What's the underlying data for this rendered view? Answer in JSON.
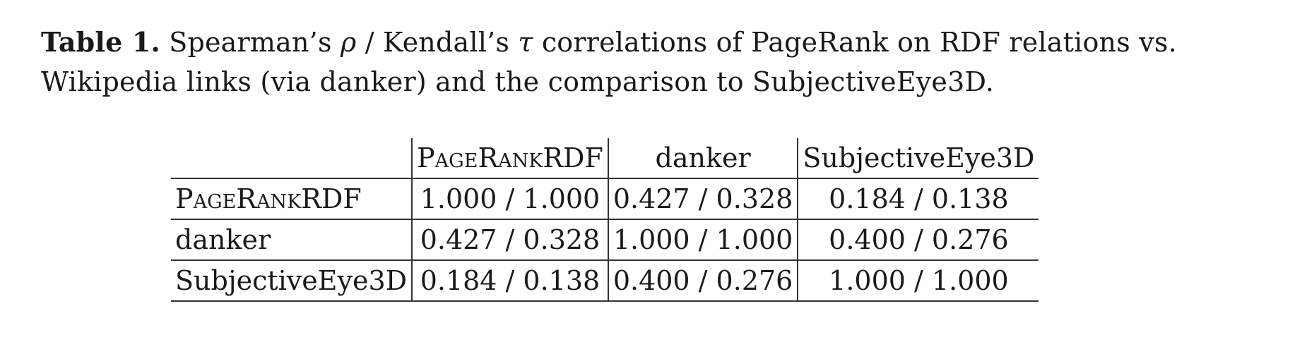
{
  "caption": {
    "label": "Table 1.",
    "text_before_rho": "Spearman’s ",
    "rho": "ρ",
    "text_middle": " / Kendall’s ",
    "tau": "τ",
    "text_after_tau": " correlations of PageRank on RDF relations vs. Wikipedia links (via danker) and the comparison to SubjectiveEye3D."
  },
  "table": {
    "columns": [
      "PageRankRDF",
      "danker",
      "SubjectiveEye3D"
    ],
    "rows": [
      {
        "label": "PageRankRDF",
        "cells": [
          "1.000 / 1.000",
          "0.427 / 0.328",
          "0.184 / 0.138"
        ]
      },
      {
        "label": "danker",
        "cells": [
          "0.427 / 0.328",
          "1.000 / 1.000",
          "0.400 / 0.276"
        ]
      },
      {
        "label": "SubjectiveEye3D",
        "cells": [
          "0.184 / 0.138",
          "0.400 / 0.276",
          "1.000 / 1.000"
        ]
      }
    ]
  }
}
